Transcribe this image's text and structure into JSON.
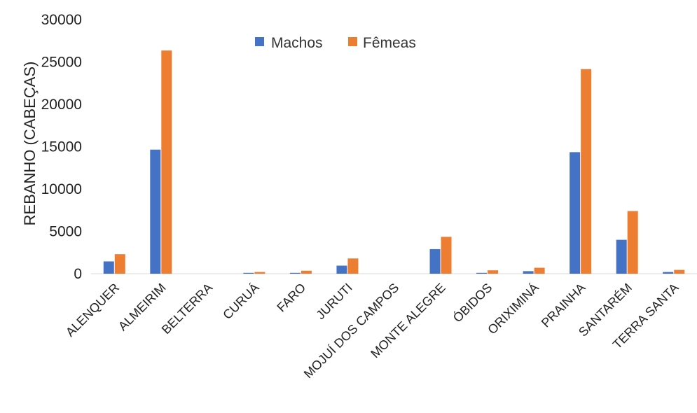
{
  "chart_data": {
    "type": "bar",
    "title": "",
    "xlabel": "",
    "ylabel": "REBANHO (CABEÇAS)",
    "ylim": [
      0,
      30000
    ],
    "yticks": [
      0,
      5000,
      10000,
      15000,
      20000,
      25000,
      30000
    ],
    "grid": false,
    "legend_position": "top-center",
    "categories": [
      "ALENQUER",
      "ALMEIRIM",
      "BELTERRA",
      "CURUÁ",
      "FARO",
      "JURUTI",
      "MOJUÍ DOS CAMPOS",
      "MONTE ALEGRE",
      "ÓBIDOS",
      "ORIXIMINÁ",
      "PRAINHA",
      "SANTARÉM",
      "TERRA SANTA"
    ],
    "series": [
      {
        "name": "Machos",
        "color": "#4472C4",
        "values": [
          1450,
          14650,
          0,
          100,
          100,
          950,
          0,
          2900,
          100,
          300,
          14350,
          4000,
          200
        ]
      },
      {
        "name": "Fêmeas",
        "color": "#ED7D31",
        "values": [
          2300,
          26350,
          0,
          200,
          350,
          1800,
          0,
          4350,
          400,
          700,
          24150,
          7400,
          450
        ]
      }
    ]
  }
}
